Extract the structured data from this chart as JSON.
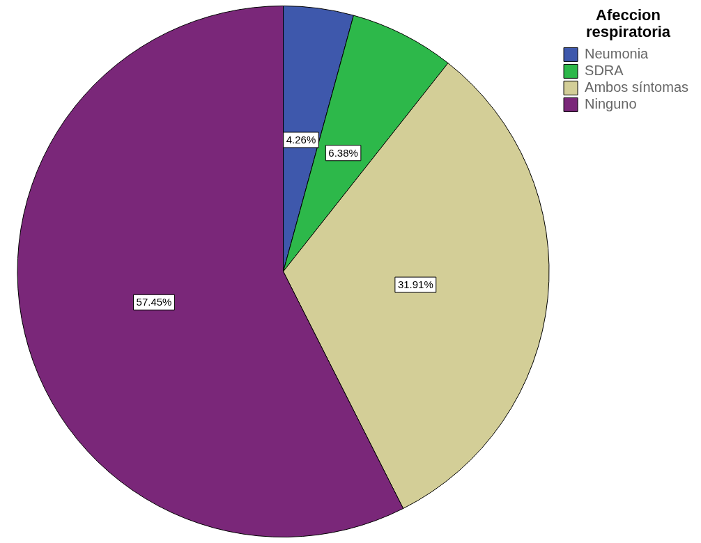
{
  "chart_data": {
    "type": "pie",
    "legend_title": "Afeccion respiratoria",
    "legend": "top right",
    "categories": [
      "Neumonia",
      "SDRA",
      "Ambos síntomas",
      "Ninguno"
    ],
    "values": [
      4.26,
      6.38,
      31.91,
      57.45
    ],
    "value_labels": [
      "4.26%",
      "6.38%",
      "31.91%",
      "57.45%"
    ],
    "colors": [
      "#3e58ac",
      "#2db84a",
      "#d3ce97",
      "#7a2779"
    ]
  }
}
